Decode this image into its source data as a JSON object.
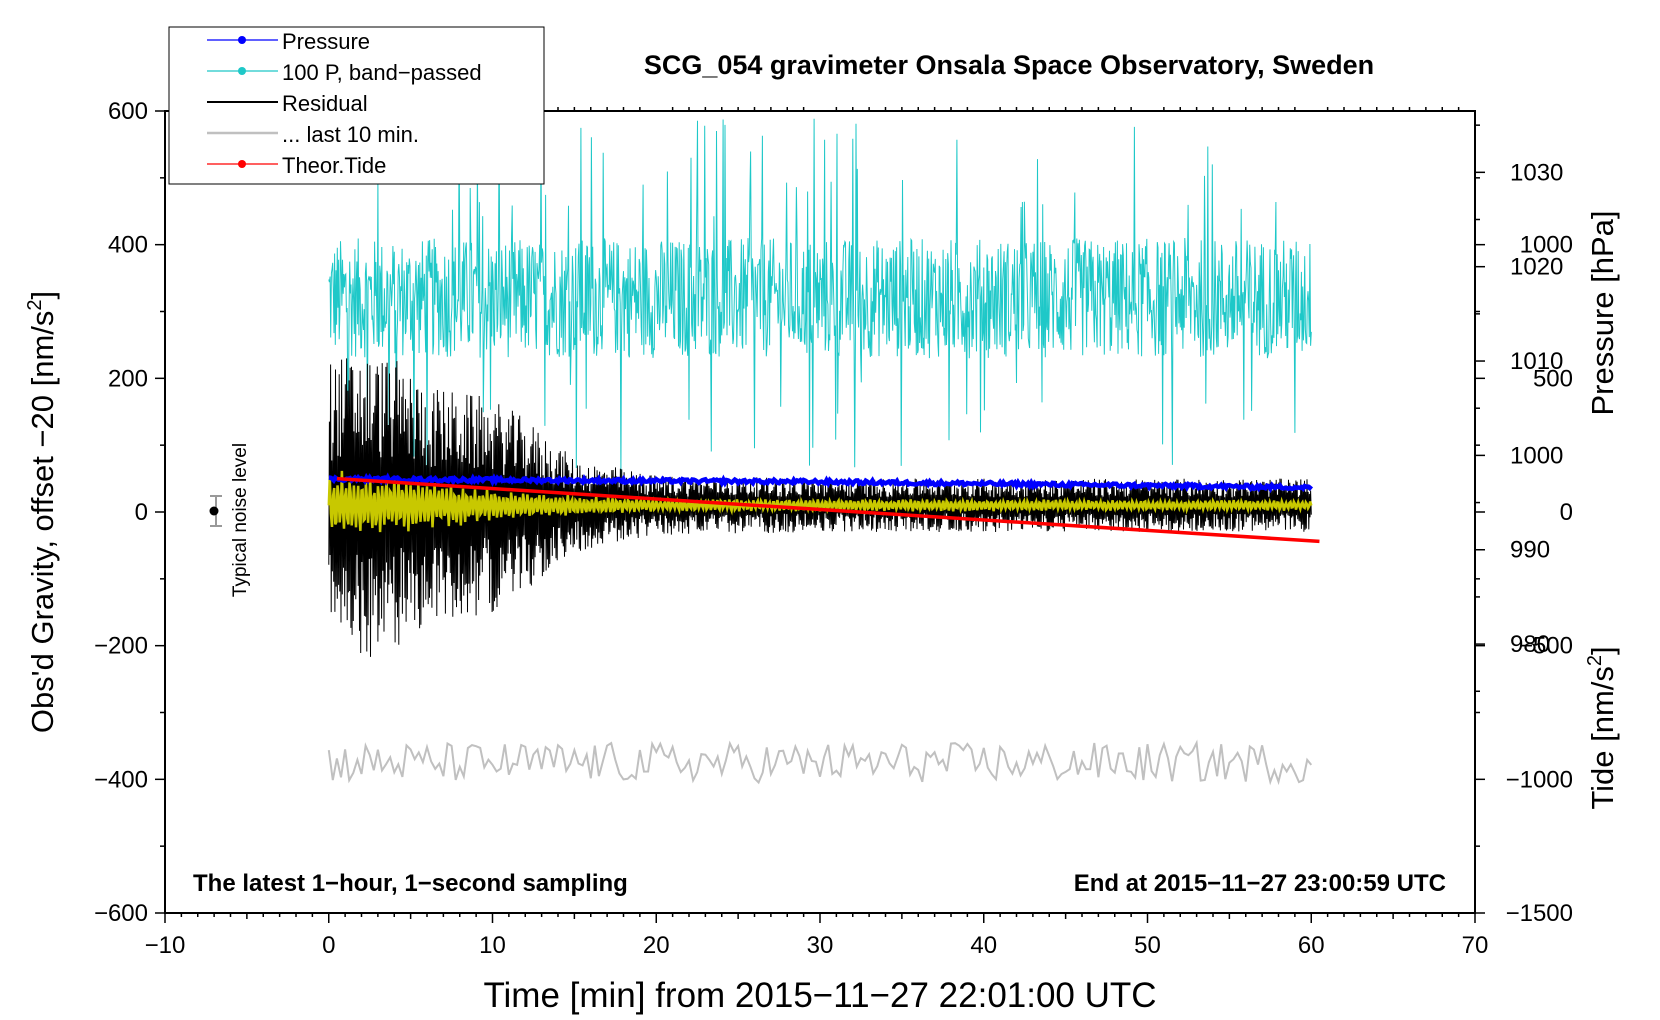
{
  "chart_data": {
    "type": "line",
    "title": "SCG_054 gravimeter Onsala Space Observatory, Sweden",
    "xlabel": "Time [min] from 2015−11−27 22:01:00 UTC",
    "ylabel_main": "Obs'd Gravity, offset  −20 [nm/s",
    "ylabel_sup": "2",
    "ylabel_close": "]",
    "ylabel_pressure": "Pressure [hPa]",
    "ylabel_tide": "Tide [nm/s",
    "ylabel_tide_sup": "2",
    "ylabel_tide_close": "]",
    "xlim": [
      -10,
      70
    ],
    "ylim": [
      -600,
      600
    ],
    "x_ticks": [
      {
        "v": -10,
        "label": "−10"
      },
      {
        "v": 0,
        "label": "0"
      },
      {
        "v": 10,
        "label": "10"
      },
      {
        "v": 20,
        "label": "20"
      },
      {
        "v": 30,
        "label": "30"
      },
      {
        "v": 40,
        "label": "40"
      },
      {
        "v": 50,
        "label": "50"
      },
      {
        "v": 60,
        "label": "60"
      },
      {
        "v": 70,
        "label": "70"
      }
    ],
    "y_ticks": [
      {
        "v": 600,
        "label": "600"
      },
      {
        "v": 400,
        "label": "400"
      },
      {
        "v": 200,
        "label": "200"
      },
      {
        "v": 0,
        "label": "0"
      },
      {
        "v": -200,
        "label": "−200"
      },
      {
        "v": -400,
        "label": "−400"
      },
      {
        "v": -600,
        "label": "−600"
      }
    ],
    "pressure_axis": {
      "range": [
        951.5,
        1036.5
      ],
      "ticks": [
        {
          "v": 1030,
          "label": "1030"
        },
        {
          "v": 1020,
          "label": "1020"
        },
        {
          "v": 1010,
          "label": "1010"
        },
        {
          "v": 1000,
          "label": "1000"
        },
        {
          "v": 990,
          "label": "990"
        },
        {
          "v": 980,
          "label": "980"
        }
      ]
    },
    "tide_axis": {
      "range": [
        -1500,
        1500
      ],
      "ticks": [
        {
          "v": 1000,
          "label": "1000"
        },
        {
          "v": 500,
          "label": "500"
        },
        {
          "v": 0,
          "label": "0"
        },
        {
          "v": -500,
          "label": "−500"
        },
        {
          "v": -1000,
          "label": "−1000"
        },
        {
          "v": -1500,
          "label": "−1500"
        }
      ]
    },
    "legend": [
      {
        "label": "Pressure",
        "color": "#0000ff",
        "marker": true
      },
      {
        "label": "100 P, band−passed",
        "color": "#1ec8c8",
        "marker": true
      },
      {
        "label": "Residual",
        "color": "#000000",
        "marker": false
      },
      {
        "label": "... last 10 min.",
        "color": "#c0c0c0",
        "marker": false
      },
      {
        "label": "Theor.Tide",
        "color": "#ff0000",
        "marker": true
      }
    ],
    "legend_position": "top-left",
    "series": [
      {
        "name": "Pressure",
        "axis": "pressure",
        "units": "hPa",
        "x": [
          0,
          10,
          20,
          30,
          40,
          50,
          60
        ],
        "values": [
          997.5,
          997.4,
          997.3,
          997.2,
          997.0,
          996.8,
          996.6
        ]
      },
      {
        "name": "100 P, band−passed",
        "axis": "main",
        "units": "nm/s2",
        "x_range": [
          0,
          60
        ],
        "approx_center": 320,
        "approx_amplitude": 90
      },
      {
        "name": "Residual",
        "axis": "main",
        "units": "nm/s2",
        "x": [
          0,
          2,
          4,
          6,
          8,
          10,
          12,
          15,
          20,
          30,
          40,
          50,
          60
        ],
        "envelope": [
          220,
          230,
          220,
          180,
          170,
          160,
          130,
          70,
          45,
          40,
          40,
          40,
          40
        ]
      },
      {
        "name": "... last 10 min.",
        "axis": "main",
        "units": "nm/s2",
        "x_range": [
          0,
          60
        ],
        "approx_center": -375,
        "approx_amplitude": 30
      },
      {
        "name": "Theor.Tide",
        "axis": "tide",
        "units": "nm/s2",
        "x": [
          0.5,
          60.5
        ],
        "values": [
          125,
          -110
        ]
      },
      {
        "name": "Residual (smoothed)",
        "axis": "main",
        "color": "#c8c800",
        "x": [
          0,
          5,
          10,
          15,
          20,
          60
        ],
        "envelope": [
          55,
          40,
          25,
          15,
          10,
          8
        ]
      }
    ],
    "noise_marker": {
      "x": -7,
      "y": 0,
      "error": 20,
      "label": "Typical noise level"
    },
    "annotations": {
      "bottom_left": "The latest 1−hour, 1−second sampling",
      "bottom_right": "End at 2015−11−27 23:00:59 UTC"
    }
  }
}
